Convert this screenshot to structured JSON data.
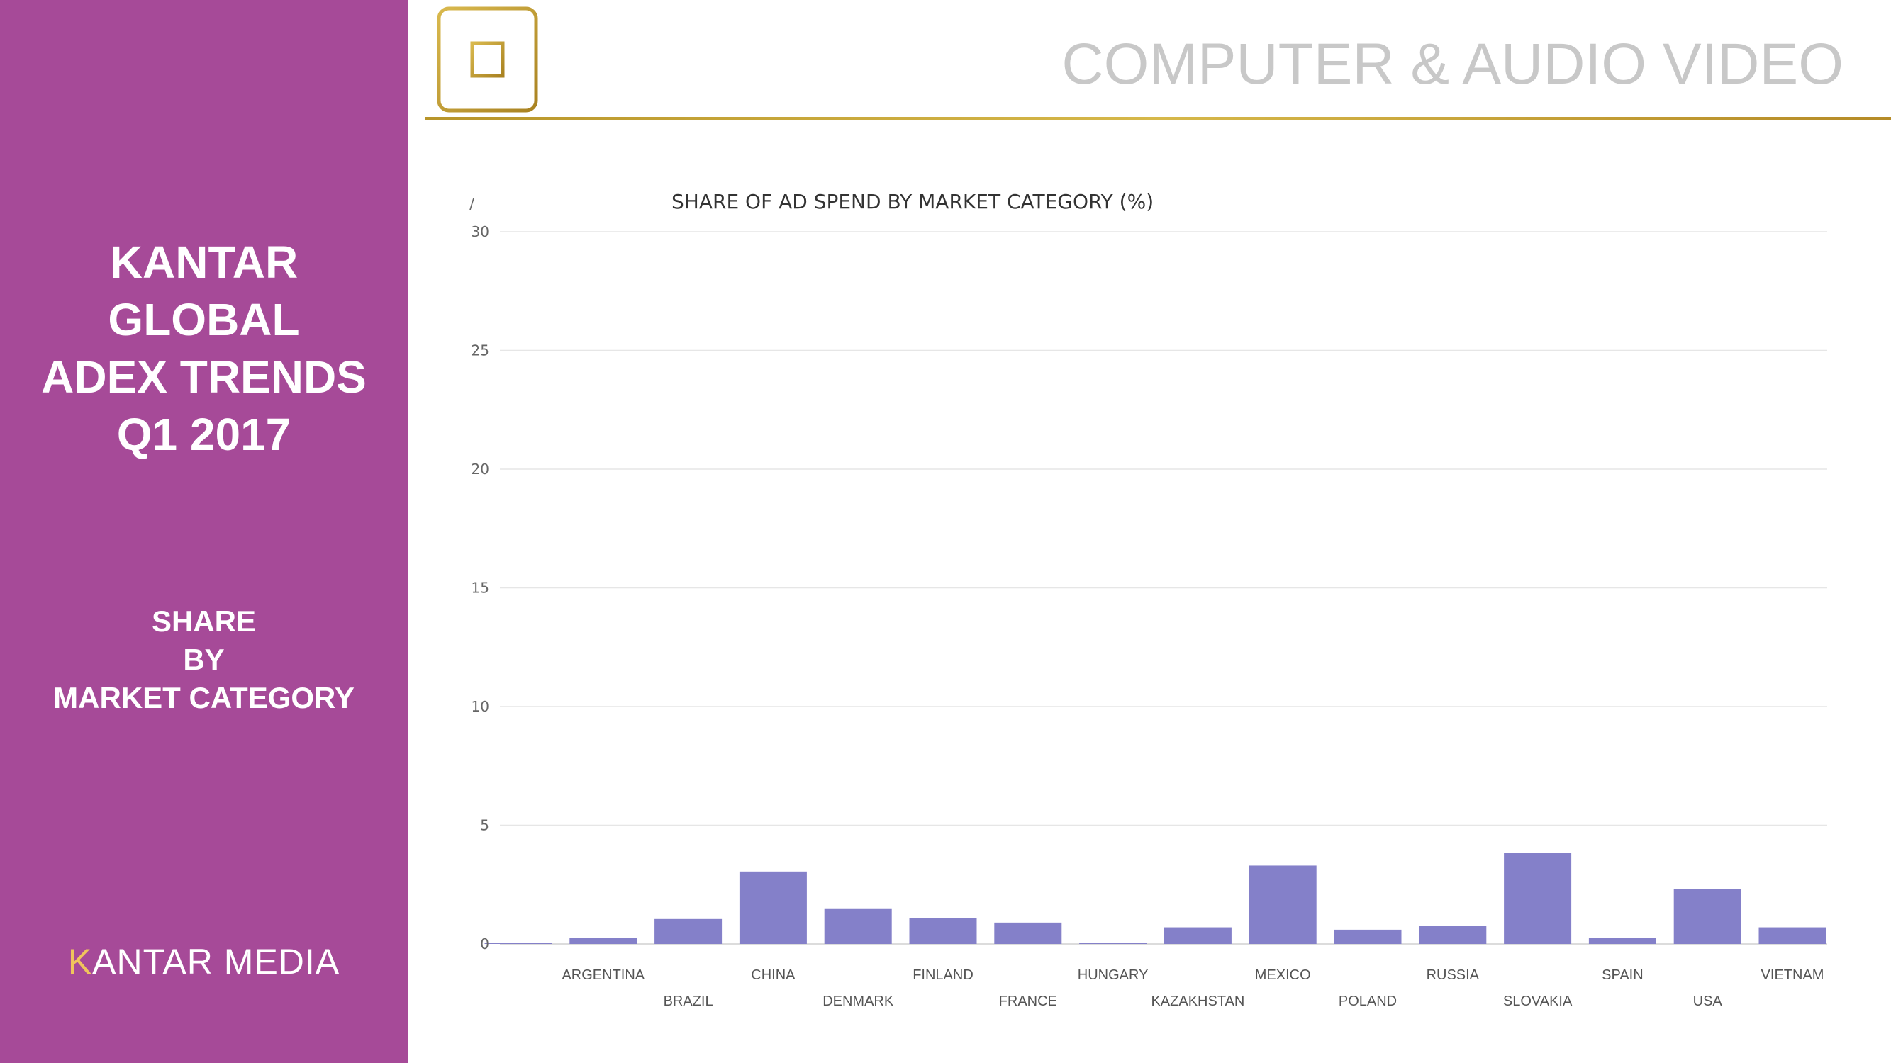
{
  "sidebar": {
    "title_lines": [
      "KANTAR",
      "GLOBAL",
      "ADEX TRENDS",
      "Q1 2017"
    ],
    "subtitle_lines": [
      "SHARE",
      "BY",
      "MARKET CATEGORY"
    ],
    "logo": "KANTAR MEDIA"
  },
  "header": {
    "title": "COMPUTER & AUDIO VIDEO",
    "icon": "microchip-icon"
  },
  "colors": {
    "sidebar": "#a64a98",
    "bar": "#8480c9",
    "rule": "#c9a73a",
    "heading": "#c8c8c8"
  },
  "chart_data": {
    "type": "bar",
    "title": "SHARE OF AD SPEND BY MARKET CATEGORY (%)",
    "corner_mark": "/",
    "xlabel": "",
    "ylabel": "",
    "ylim": [
      0,
      30
    ],
    "yticks": [
      0,
      5,
      10,
      15,
      20,
      25,
      30
    ],
    "grid": true,
    "categories": [
      "",
      "ARGENTINA",
      "BRAZIL",
      "CHINA",
      "DENMARK",
      "FINLAND",
      "FRANCE",
      "HUNGARY",
      "KAZAKHSTAN",
      "MEXICO",
      "POLAND",
      "RUSSIA",
      "SLOVAKIA",
      "SPAIN",
      "USA",
      "VIETNAM"
    ],
    "values": [
      0.05,
      0.25,
      1.05,
      3.05,
      1.5,
      1.1,
      0.9,
      0.05,
      0.7,
      3.3,
      0.6,
      0.75,
      3.85,
      0.25,
      2.3,
      0.7
    ]
  }
}
